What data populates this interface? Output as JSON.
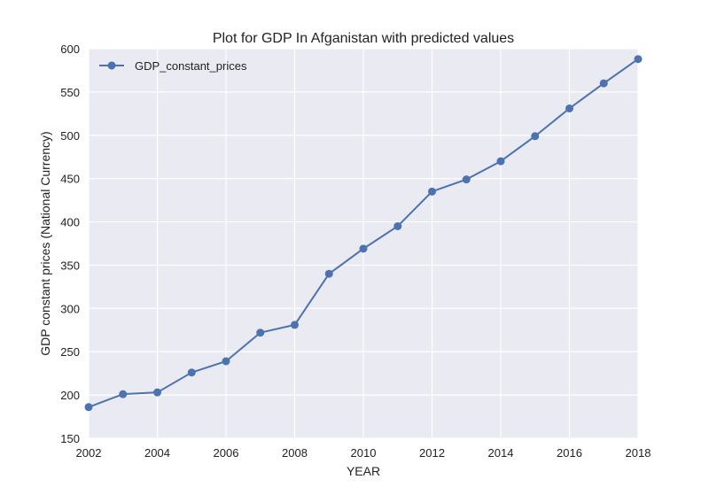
{
  "chart_data": {
    "type": "line",
    "title": "Plot for GDP In Afganistan with predicted values",
    "xlabel": "YEAR",
    "ylabel": "GDP constant prices (National Currency)",
    "xlim": [
      2002,
      2018
    ],
    "ylim": [
      150,
      600
    ],
    "x_ticks": [
      2002,
      2004,
      2006,
      2008,
      2010,
      2012,
      2014,
      2016,
      2018
    ],
    "y_ticks": [
      150,
      200,
      250,
      300,
      350,
      400,
      450,
      500,
      550,
      600
    ],
    "grid": true,
    "legend_position": "top-left",
    "background_color": "#eaeaf2",
    "grid_color": "#ffffff",
    "series": [
      {
        "name": "GDP_constant_prices",
        "color": "#4c72b0",
        "marker": "circle",
        "x": [
          2002,
          2003,
          2004,
          2005,
          2006,
          2007,
          2008,
          2009,
          2010,
          2011,
          2012,
          2013,
          2014,
          2015,
          2016,
          2017,
          2018
        ],
        "values": [
          186,
          201,
          203,
          226,
          239,
          272,
          281,
          340,
          369,
          395,
          435,
          449,
          470,
          499,
          531,
          560,
          588
        ]
      }
    ]
  }
}
